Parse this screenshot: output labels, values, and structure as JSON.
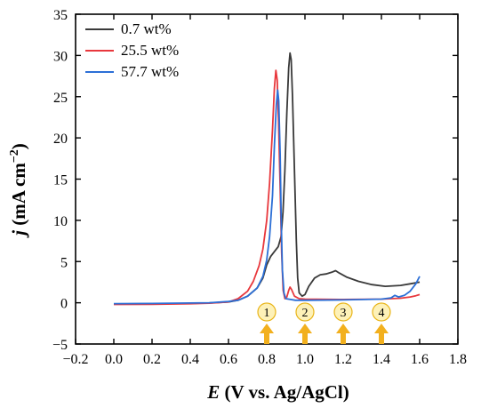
{
  "chart_data": {
    "type": "line",
    "xlabel": "E (V vs. Ag/AgCl)",
    "xlabel_italic": "E",
    "xlabel_rest": " (V vs. Ag/AgCl)",
    "ylabel": "j (mA cm⁻²)",
    "ylabel_italic": "j",
    "ylabel_rest": " (mA cm",
    "ylabel_sup": "−2",
    "ylabel_close": ")",
    "xlim": [
      -0.2,
      1.8
    ],
    "ylim": [
      -5,
      35
    ],
    "xticks": [
      -0.2,
      0.0,
      0.2,
      0.4,
      0.6,
      0.8,
      1.0,
      1.2,
      1.4,
      1.6,
      1.8
    ],
    "xtick_labels": [
      "−0.2",
      "0.0",
      "0.2",
      "0.4",
      "0.6",
      "0.8",
      "1.0",
      "1.2",
      "1.4",
      "1.6",
      "1.8"
    ],
    "yticks": [
      -5,
      0,
      5,
      10,
      15,
      20,
      25,
      30,
      35
    ],
    "ytick_labels": [
      "−5",
      "0",
      "5",
      "10",
      "15",
      "20",
      "25",
      "30",
      "35"
    ],
    "legend_position": "top-left",
    "grid": false,
    "series": [
      {
        "name": "0.7 wt%",
        "color": "#3a3a3a",
        "points": [
          [
            0.0,
            -0.15
          ],
          [
            0.2,
            -0.12
          ],
          [
            0.4,
            -0.08
          ],
          [
            0.5,
            -0.02
          ],
          [
            0.6,
            0.1
          ],
          [
            0.65,
            0.3
          ],
          [
            0.7,
            0.8
          ],
          [
            0.75,
            1.8
          ],
          [
            0.78,
            3.0
          ],
          [
            0.8,
            4.6
          ],
          [
            0.82,
            5.6
          ],
          [
            0.84,
            6.2
          ],
          [
            0.86,
            6.8
          ],
          [
            0.875,
            8.0
          ],
          [
            0.885,
            11.0
          ],
          [
            0.895,
            16.0
          ],
          [
            0.905,
            23.0
          ],
          [
            0.915,
            28.5
          ],
          [
            0.922,
            30.3
          ],
          [
            0.928,
            29.5
          ],
          [
            0.935,
            25.0
          ],
          [
            0.945,
            16.0
          ],
          [
            0.955,
            7.5
          ],
          [
            0.962,
            3.0
          ],
          [
            0.97,
            1.2
          ],
          [
            0.985,
            0.8
          ],
          [
            1.0,
            1.0
          ],
          [
            1.02,
            2.0
          ],
          [
            1.05,
            3.0
          ],
          [
            1.08,
            3.4
          ],
          [
            1.11,
            3.5
          ],
          [
            1.14,
            3.7
          ],
          [
            1.16,
            3.9
          ],
          [
            1.18,
            3.6
          ],
          [
            1.22,
            3.1
          ],
          [
            1.28,
            2.6
          ],
          [
            1.35,
            2.2
          ],
          [
            1.42,
            2.0
          ],
          [
            1.5,
            2.1
          ],
          [
            1.55,
            2.3
          ],
          [
            1.6,
            2.5
          ]
        ]
      },
      {
        "name": "25.5 wt%",
        "color": "#e8383d",
        "points": [
          [
            0.0,
            -0.2
          ],
          [
            0.2,
            -0.18
          ],
          [
            0.4,
            -0.12
          ],
          [
            0.5,
            -0.05
          ],
          [
            0.6,
            0.1
          ],
          [
            0.65,
            0.5
          ],
          [
            0.7,
            1.4
          ],
          [
            0.73,
            2.6
          ],
          [
            0.76,
            4.5
          ],
          [
            0.78,
            6.5
          ],
          [
            0.8,
            10.0
          ],
          [
            0.815,
            14.5
          ],
          [
            0.83,
            21.0
          ],
          [
            0.84,
            26.0
          ],
          [
            0.848,
            28.2
          ],
          [
            0.855,
            27.0
          ],
          [
            0.862,
            22.0
          ],
          [
            0.87,
            14.0
          ],
          [
            0.878,
            6.0
          ],
          [
            0.886,
            1.5
          ],
          [
            0.895,
            0.5
          ],
          [
            0.905,
            0.7
          ],
          [
            0.915,
            1.5
          ],
          [
            0.922,
            1.9
          ],
          [
            0.93,
            1.6
          ],
          [
            0.945,
            0.8
          ],
          [
            0.97,
            0.5
          ],
          [
            1.0,
            0.45
          ],
          [
            1.2,
            0.4
          ],
          [
            1.4,
            0.45
          ],
          [
            1.5,
            0.55
          ],
          [
            1.55,
            0.7
          ],
          [
            1.58,
            0.85
          ],
          [
            1.6,
            1.0
          ]
        ]
      },
      {
        "name": "57.7 wt%",
        "color": "#2c6fd6",
        "points": [
          [
            0.0,
            -0.1
          ],
          [
            0.2,
            -0.08
          ],
          [
            0.4,
            -0.03
          ],
          [
            0.5,
            0.0
          ],
          [
            0.6,
            0.15
          ],
          [
            0.65,
            0.3
          ],
          [
            0.7,
            0.8
          ],
          [
            0.75,
            1.8
          ],
          [
            0.78,
            3.2
          ],
          [
            0.8,
            5.2
          ],
          [
            0.815,
            8.0
          ],
          [
            0.83,
            13.0
          ],
          [
            0.84,
            19.0
          ],
          [
            0.85,
            24.0
          ],
          [
            0.857,
            25.8
          ],
          [
            0.863,
            24.5
          ],
          [
            0.87,
            18.0
          ],
          [
            0.876,
            10.0
          ],
          [
            0.882,
            4.0
          ],
          [
            0.89,
            1.2
          ],
          [
            0.9,
            0.5
          ],
          [
            0.95,
            0.3
          ],
          [
            1.0,
            0.3
          ],
          [
            1.2,
            0.35
          ],
          [
            1.4,
            0.45
          ],
          [
            1.45,
            0.6
          ],
          [
            1.47,
            0.9
          ],
          [
            1.49,
            0.7
          ],
          [
            1.52,
            0.9
          ],
          [
            1.55,
            1.4
          ],
          [
            1.58,
            2.3
          ],
          [
            1.6,
            3.2
          ]
        ]
      }
    ],
    "markers": [
      {
        "label": "1",
        "x": 0.8
      },
      {
        "label": "2",
        "x": 1.0
      },
      {
        "label": "3",
        "x": 1.2
      },
      {
        "label": "4",
        "x": 1.4
      }
    ],
    "marker_colors": {
      "circle_fill": "#fdf1b8",
      "circle_stroke": "#e9b51a",
      "arrow": "#f2b01e"
    }
  }
}
